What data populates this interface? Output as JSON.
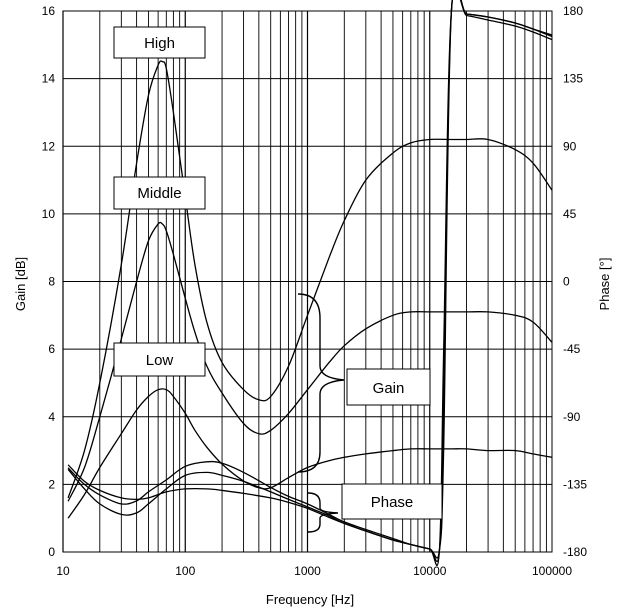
{
  "chart_data": {
    "type": "line",
    "title": "",
    "xlabel": "Frequency [Hz]",
    "ylabel": "Gain [dB]",
    "y2label": "Phase [°]",
    "xscale": "log",
    "xlim": [
      10,
      100000
    ],
    "ylim": [
      0,
      16
    ],
    "y2lim": [
      -180,
      180
    ],
    "grid": true,
    "legend": "none",
    "x_tick_labels": [
      "10",
      "100",
      "1000",
      "10000",
      "100000"
    ],
    "y_tick_labels": [
      "0",
      "2",
      "4",
      "6",
      "8",
      "10",
      "12",
      "14",
      "16"
    ],
    "y2_tick_labels": [
      "-180",
      "-135",
      "-90",
      "-45",
      "0",
      "45",
      "90",
      "135",
      "180"
    ],
    "annotations": {
      "high": "High",
      "middle": "Middle",
      "low": "Low",
      "gain": "Gain",
      "phase": "Phase"
    },
    "series": [
      {
        "axis": "left",
        "x": [
          11,
          15,
          20,
          30,
          40,
          50,
          60,
          65,
          70,
          80,
          100,
          120,
          150,
          200,
          300,
          400,
          500,
          700,
          1000,
          1500,
          2000,
          3000,
          5000,
          7000,
          10000,
          15000,
          20000,
          30000,
          50000,
          70000,
          100000
        ],
        "values": [
          1.6,
          3.0,
          5.0,
          8.5,
          11.5,
          13.5,
          14.4,
          14.5,
          14.3,
          13.0,
          10.5,
          8.5,
          6.8,
          5.6,
          4.8,
          4.5,
          4.6,
          5.5,
          7.0,
          8.7,
          9.8,
          11.0,
          11.8,
          12.1,
          12.2,
          12.2,
          12.2,
          12.2,
          11.9,
          11.5,
          10.7
        ]
      },
      {
        "axis": "left",
        "x": [
          11,
          15,
          20,
          30,
          40,
          50,
          60,
          65,
          70,
          80,
          100,
          120,
          150,
          200,
          300,
          400,
          500,
          700,
          1000,
          1500,
          2000,
          3000,
          5000,
          7000,
          10000,
          15000,
          20000,
          30000,
          50000,
          70000,
          100000
        ],
        "values": [
          1.5,
          2.5,
          4.0,
          6.3,
          8.0,
          9.2,
          9.7,
          9.7,
          9.5,
          8.8,
          7.5,
          6.5,
          5.5,
          4.7,
          3.8,
          3.5,
          3.6,
          4.1,
          4.8,
          5.6,
          6.1,
          6.6,
          7.0,
          7.1,
          7.1,
          7.1,
          7.1,
          7.1,
          7.0,
          6.8,
          6.2
        ]
      },
      {
        "axis": "left",
        "x": [
          11,
          15,
          20,
          30,
          40,
          50,
          60,
          70,
          80,
          100,
          120,
          150,
          200,
          300,
          400,
          500,
          700,
          1000,
          1500,
          2000,
          3000,
          5000,
          7000,
          10000,
          15000,
          20000,
          30000,
          50000,
          70000,
          100000
        ],
        "values": [
          1.0,
          1.7,
          2.5,
          3.5,
          4.2,
          4.6,
          4.8,
          4.8,
          4.6,
          4.1,
          3.6,
          3.1,
          2.6,
          2.1,
          1.9,
          1.9,
          2.2,
          2.5,
          2.7,
          2.8,
          2.9,
          3.0,
          3.05,
          3.05,
          3.05,
          3.05,
          3.0,
          3.0,
          2.9,
          2.8
        ]
      },
      {
        "axis": "right",
        "x": [
          11,
          15,
          20,
          30,
          40,
          50,
          70,
          100,
          150,
          200,
          300,
          500,
          700,
          1000,
          1500,
          2000,
          3000,
          5000,
          7000,
          10000,
          12000,
          13000,
          15000,
          20000,
          30000,
          50000,
          70000,
          100000
        ],
        "values": [
          -124,
          -135,
          -142,
          -148,
          -146,
          -140,
          -132,
          -123,
          -120,
          -121,
          -127,
          -137,
          -143,
          -148,
          -155,
          -160,
          -165,
          -171,
          -175,
          -178,
          -179,
          -110,
          178,
          177,
          174,
          170,
          166,
          161
        ]
      },
      {
        "axis": "right",
        "x": [
          11,
          15,
          20,
          30,
          40,
          50,
          70,
          100,
          150,
          200,
          300,
          500,
          700,
          1000,
          1500,
          2000,
          3000,
          5000,
          7000,
          10000,
          12000,
          13000,
          15000,
          20000,
          30000,
          50000,
          70000,
          100000
        ],
        "values": [
          -125,
          -138,
          -148,
          -155,
          -154,
          -148,
          -138,
          -129,
          -127,
          -129,
          -133,
          -140,
          -145,
          -150,
          -156,
          -161,
          -166,
          -172,
          -175,
          -178,
          -179,
          -80,
          179,
          178,
          176,
          172,
          168,
          163
        ]
      },
      {
        "axis": "right",
        "x": [
          11,
          15,
          20,
          30,
          40,
          50,
          70,
          100,
          150,
          200,
          300,
          500,
          700,
          1000,
          1500,
          2000,
          3000,
          5000,
          7000,
          10000,
          12000,
          13000,
          15000,
          20000,
          30000,
          50000,
          70000,
          100000
        ],
        "values": [
          -122,
          -133,
          -139,
          -144,
          -145,
          -144,
          -140,
          -138,
          -138,
          -139,
          -141,
          -144,
          -147,
          -151,
          -157,
          -161,
          -166,
          -172,
          -175,
          -178,
          -179,
          -45,
          179,
          178,
          176,
          172,
          168,
          164
        ]
      }
    ]
  }
}
